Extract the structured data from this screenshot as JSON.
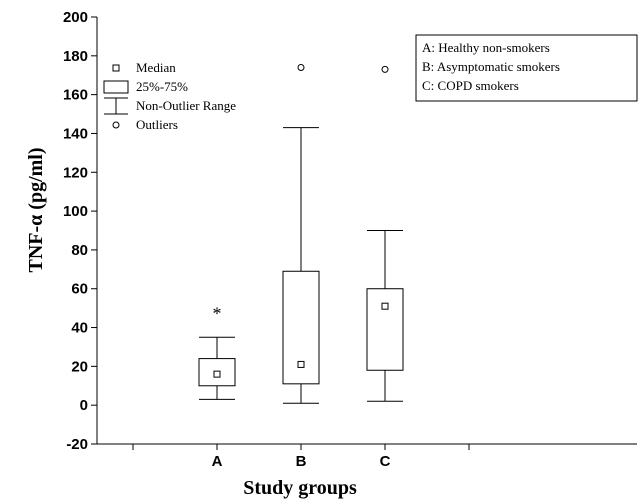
{
  "chart_data": {
    "type": "boxplot",
    "title": "",
    "xlabel": "Study groups",
    "ylabel": "TNF-α (pg/ml)",
    "ylim": [
      -20,
      200
    ],
    "yticks": [
      -20,
      0,
      20,
      40,
      60,
      80,
      100,
      120,
      140,
      160,
      180,
      200
    ],
    "grid": false,
    "categories": [
      "A",
      "B",
      "C"
    ],
    "boxes": [
      {
        "category": "A",
        "median": 16,
        "q1": 10,
        "q3": 24,
        "whisker_low": 3,
        "whisker_high": 35,
        "outliers": [],
        "annotation": "*"
      },
      {
        "category": "B",
        "median": 21,
        "q1": 11,
        "q3": 69,
        "whisker_low": 1,
        "whisker_high": 143,
        "outliers": [
          174
        ],
        "annotation": ""
      },
      {
        "category": "C",
        "median": 51,
        "q1": 18,
        "q3": 60,
        "whisker_low": 2,
        "whisker_high": 90,
        "outliers": [
          173
        ],
        "annotation": ""
      }
    ],
    "legend": {
      "placement": "top-left",
      "items": [
        {
          "symbol": "median",
          "label": "Median"
        },
        {
          "symbol": "box",
          "label": "25%-75%"
        },
        {
          "symbol": "whisker",
          "label": "Non-Outlier Range"
        },
        {
          "symbol": "outlier",
          "label": "Outliers"
        }
      ]
    },
    "group_key": {
      "placement": "top-right",
      "lines": [
        "A: Healthy non-smokers",
        "B: Asymptomatic smokers",
        "C: COPD smokers"
      ]
    }
  }
}
